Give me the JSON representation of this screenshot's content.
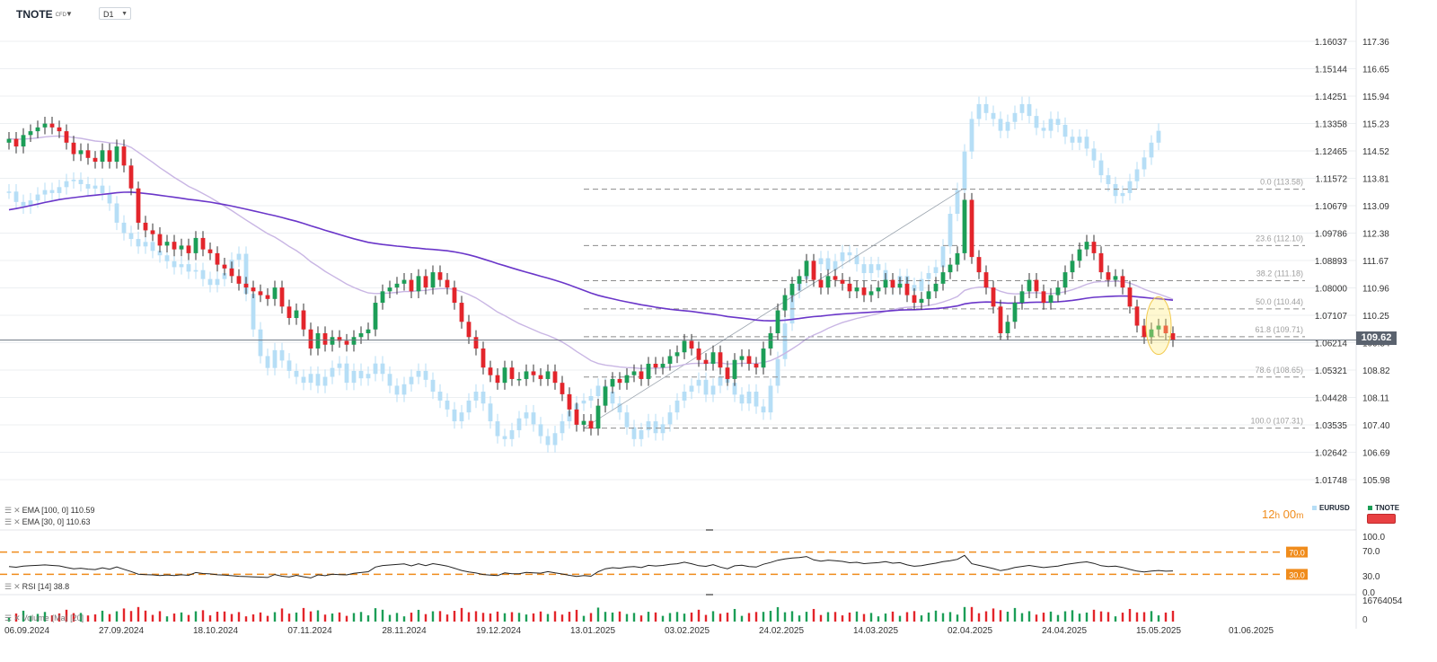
{
  "header": {
    "symbol": "TNOTE",
    "symbol_type": "CFD",
    "timeframe": "D1"
  },
  "indicators": {
    "ema100_label": "EMA [100, 0] 110.59",
    "ema30_label": "EMA [30, 0] 110.63",
    "rsi_label": "RSI [14] 38.8",
    "volume_label": "Volume (Ma) [20]"
  },
  "countdown": {
    "hours": "12",
    "h_unit": "h",
    "minutes": "00",
    "m_unit": "m"
  },
  "legend": {
    "eurusd": "EURUSD",
    "tnote": "TNOTE"
  },
  "current_price": "109.62",
  "colors": {
    "up": "#1c9e57",
    "down": "#e3252b",
    "eurusd": "#b6def6",
    "ema100": "#6a36c9",
    "ema30": "#c9b6e4",
    "fib": "#8c8c8c",
    "rsi_level": "#f08c1c"
  },
  "chart_data": {
    "type": "candlestick",
    "x_tick_labels": [
      "06.09.2024",
      "27.09.2024",
      "18.10.2024",
      "07.11.2024",
      "28.11.2024",
      "19.12.2024",
      "13.01.2025",
      "03.02.2025",
      "24.02.2025",
      "14.03.2025",
      "02.04.2025",
      "24.04.2025",
      "15.05.2025",
      "01.06.2025"
    ],
    "y_right_ticks": [
      "117.36",
      "116.65",
      "115.94",
      "115.23",
      "114.52",
      "113.81",
      "113.09",
      "112.38",
      "111.67",
      "110.96",
      "110.25",
      "109.54",
      "108.82",
      "108.11",
      "107.40",
      "106.69",
      "105.98"
    ],
    "y_left_ticks": [
      "1.16037",
      "1.15144",
      "1.14251",
      "1.13358",
      "1.12465",
      "1.11572",
      "1.10679",
      "1.09786",
      "1.08893",
      "1.08000",
      "1.07107",
      "1.06214",
      "1.05321",
      "1.04428",
      "1.03535",
      "1.02642",
      "1.01748"
    ],
    "tnote_ylim": [
      105.7,
      117.6
    ],
    "last_price": 109.62,
    "fibonacci": [
      {
        "label": "0.0 (113.58)",
        "value": 113.58
      },
      {
        "label": "23.6 (112.10)",
        "value": 112.1
      },
      {
        "label": "38.2 (111.18)",
        "value": 111.18
      },
      {
        "label": "50.0 (110.44)",
        "value": 110.44
      },
      {
        "label": "61.8 (109.71)",
        "value": 109.71
      },
      {
        "label": "78.6 (108.65)",
        "value": 108.65
      },
      {
        "label": "100.0 (107.31)",
        "value": 107.31
      }
    ],
    "tnote_close": [
      114.9,
      114.7,
      115.0,
      115.1,
      115.2,
      115.3,
      115.2,
      115.1,
      114.8,
      114.5,
      114.6,
      114.4,
      114.3,
      114.6,
      114.3,
      114.7,
      114.2,
      113.6,
      112.7,
      112.5,
      112.4,
      112.1,
      112.2,
      112.0,
      112.1,
      111.9,
      112.3,
      112.0,
      111.9,
      111.6,
      111.5,
      111.3,
      111.1,
      111.0,
      110.9,
      110.8,
      110.7,
      111.0,
      110.5,
      110.2,
      110.4,
      109.9,
      109.4,
      109.8,
      109.5,
      109.7,
      109.6,
      109.5,
      109.7,
      109.8,
      109.9,
      110.6,
      110.9,
      111.0,
      111.1,
      111.2,
      110.9,
      111.3,
      111.0,
      111.4,
      111.2,
      111.0,
      110.6,
      110.1,
      109.7,
      109.4,
      108.9,
      108.7,
      108.5,
      108.9,
      108.6,
      108.6,
      108.8,
      108.7,
      108.6,
      108.8,
      108.5,
      108.2,
      107.8,
      107.4,
      107.5,
      107.3,
      107.9,
      108.4,
      108.6,
      108.5,
      108.7,
      108.8,
      108.6,
      109.0,
      108.9,
      109.0,
      109.2,
      109.3,
      109.6,
      109.4,
      109.1,
      109.0,
      109.3,
      108.9,
      108.6,
      109.1,
      109.2,
      109.0,
      108.9,
      109.4,
      109.8,
      110.4,
      110.8,
      111.1,
      111.3,
      111.7,
      111.2,
      111.0,
      111.3,
      111.2,
      111.1,
      110.9,
      111.0,
      110.8,
      110.9,
      111.0,
      111.2,
      111.0,
      111.1,
      110.8,
      110.6,
      110.7,
      110.9,
      111.1,
      111.4,
      111.6,
      111.9,
      113.3,
      111.8,
      111.4,
      111.0,
      110.5,
      109.8,
      110.1,
      110.6,
      110.9,
      111.2,
      110.9,
      110.6,
      110.8,
      111.0,
      111.4,
      111.7,
      112.0,
      112.2,
      111.9,
      111.4,
      111.2,
      111.3,
      111.0,
      110.5,
      110.0,
      109.7,
      109.9,
      110.0,
      109.8,
      109.62
    ],
    "eurusd_close": [
      1.1125,
      1.109,
      1.1075,
      1.1095,
      1.1115,
      1.113,
      1.112,
      1.114,
      1.116,
      1.1165,
      1.115,
      1.1135,
      1.1145,
      1.112,
      1.1085,
      1.102,
      1.0985,
      1.0965,
      1.094,
      1.0955,
      1.0925,
      1.091,
      1.089,
      1.087,
      1.088,
      1.0855,
      1.086,
      1.083,
      1.081,
      1.083,
      1.085,
      1.0895,
      1.0915,
      1.078,
      1.066,
      1.057,
      1.053,
      1.059,
      1.0555,
      1.052,
      1.05,
      1.048,
      1.051,
      1.047,
      1.05,
      1.053,
      1.0545,
      1.048,
      1.052,
      1.0495,
      1.051,
      1.0545,
      1.051,
      1.047,
      1.044,
      1.0475,
      1.05,
      1.052,
      1.049,
      1.045,
      1.042,
      1.039,
      1.035,
      1.038,
      1.042,
      1.045,
      1.041,
      1.035,
      1.03,
      1.029,
      1.032,
      1.036,
      1.038,
      1.034,
      1.03,
      1.027,
      1.031,
      1.035,
      1.0385,
      1.041,
      1.042,
      1.0435,
      1.047,
      1.045,
      1.041,
      1.038,
      1.033,
      1.029,
      1.032,
      1.035,
      1.031,
      1.034,
      1.038,
      1.042,
      1.045,
      1.047,
      1.049,
      1.044,
      1.047,
      1.05,
      1.048,
      1.044,
      1.041,
      1.045,
      1.04,
      1.038,
      1.047,
      1.056,
      1.068,
      1.079,
      1.083,
      1.085,
      1.088,
      1.09,
      1.086,
      1.089,
      1.092,
      1.091,
      1.088,
      1.085,
      1.088,
      1.086,
      1.082,
      1.08,
      1.084,
      1.081,
      1.079,
      1.083,
      1.085,
      1.087,
      1.094,
      1.105,
      1.113,
      1.126,
      1.137,
      1.142,
      1.139,
      1.137,
      1.133,
      1.136,
      1.139,
      1.142,
      1.138,
      1.134,
      1.133,
      1.137,
      1.135,
      1.131,
      1.129,
      1.131,
      1.127,
      1.123,
      1.118,
      1.115,
      1.111,
      1.112,
      1.116,
      1.12,
      1.124,
      1.129,
      1.133
    ],
    "rsi": {
      "levels": [
        70.0,
        30.0
      ],
      "value": 38.8,
      "ticks": [
        "100.0",
        "70.0",
        "30.0",
        "0.0"
      ]
    },
    "volume": {
      "ticks": [
        "16764054",
        "0"
      ]
    }
  }
}
